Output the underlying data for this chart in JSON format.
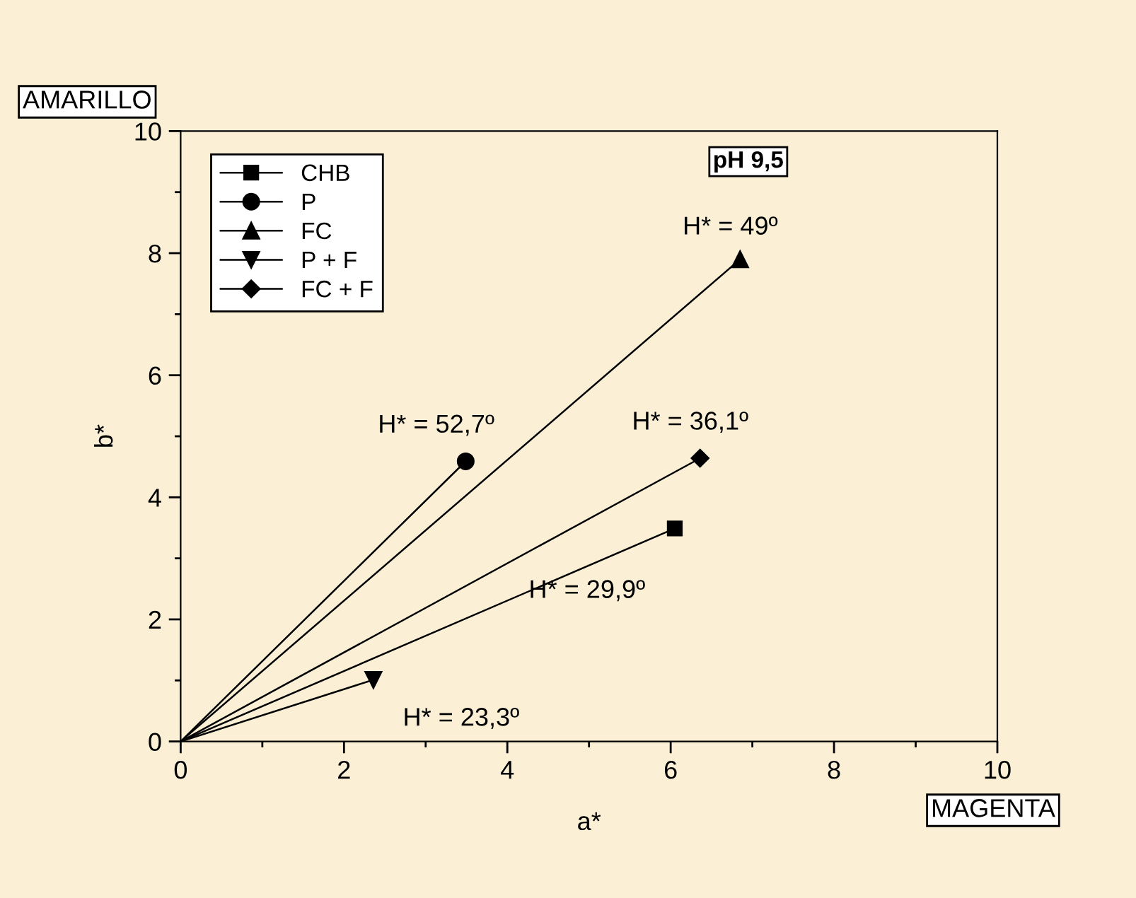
{
  "chart_data": {
    "type": "line",
    "xlabel": "a*",
    "ylabel": "b*",
    "xlim": [
      0,
      10
    ],
    "ylim": [
      0,
      10
    ],
    "xticks": [
      0,
      2,
      4,
      6,
      8,
      10
    ],
    "yticks": [
      0,
      2,
      4,
      6,
      8,
      10
    ],
    "grid": false,
    "legend": "top left",
    "line_style": "solid",
    "series": [
      {
        "name": "CHB",
        "color": "#000000",
        "marker": "square",
        "x": [
          0,
          6.05
        ],
        "values": [
          0,
          3.49
        ]
      },
      {
        "name": "P",
        "color": "#000000",
        "marker": "circle",
        "x": [
          0,
          3.49
        ],
        "values": [
          0,
          4.59
        ]
      },
      {
        "name": "FC",
        "color": "#000000",
        "marker": "triangle",
        "x": [
          0,
          6.85
        ],
        "values": [
          0,
          7.9
        ]
      },
      {
        "name": "P + F",
        "color": "#000000",
        "marker": "triangle_down",
        "x": [
          0,
          2.36
        ],
        "values": [
          0,
          1.01
        ]
      },
      {
        "name": "FC + F",
        "color": "#000000",
        "marker": "diamond",
        "x": [
          0,
          6.36
        ],
        "values": [
          0,
          4.64
        ]
      }
    ],
    "annotations": [
      {
        "text": "H* = 29,9º",
        "x": 6.05,
        "y": 3.49
      },
      {
        "text": "H* = 52,7º",
        "x": 3.49,
        "y": 4.59
      },
      {
        "text": "H* = 49º",
        "x": 6.85,
        "y": 7.9
      },
      {
        "text": "H* = 23,3º",
        "x": 2.36,
        "y": 1.01
      },
      {
        "text": "H* = 36,1º",
        "x": 6.36,
        "y": 4.64
      },
      "pH 9,5",
      "AMARILLO",
      "MAGENTA"
    ]
  }
}
